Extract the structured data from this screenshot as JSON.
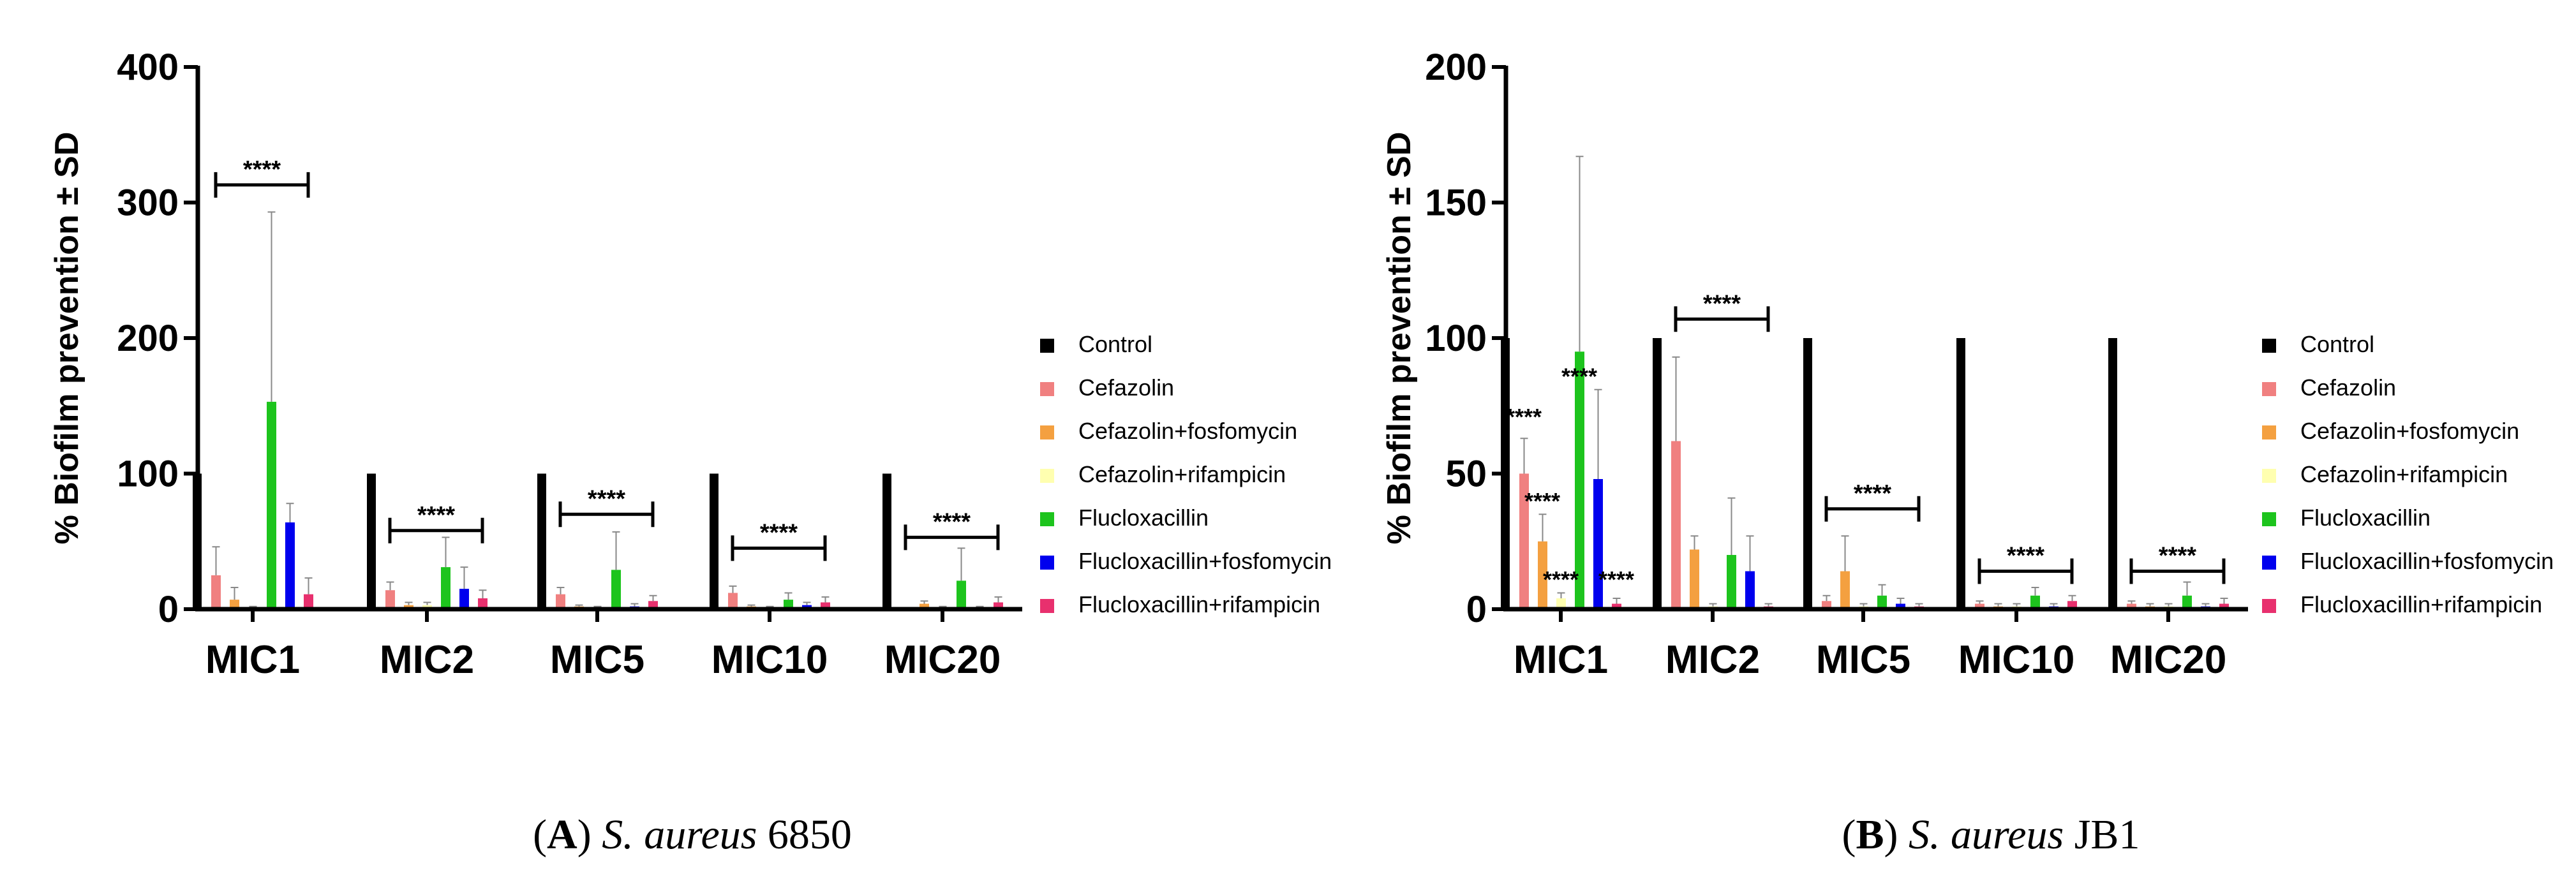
{
  "series_meta": [
    {
      "name": "Control",
      "color": "#000000"
    },
    {
      "name": "Cefazolin",
      "color": "#F08080"
    },
    {
      "name": "Cefazolin+fosfomycin",
      "color": "#F4A040"
    },
    {
      "name": "Cefazolin+rifampicin",
      "color": "#FFFFB0"
    },
    {
      "name": "Flucloxacillin",
      "color": "#1DC41D"
    },
    {
      "name": "Flucloxacillin+fosfomycin",
      "color": "#0000EE"
    },
    {
      "name": "Flucloxacillin+rifampicin",
      "color": "#E8306E"
    }
  ],
  "chart_data": [
    {
      "panel": "A",
      "type": "bar",
      "title": "",
      "ylabel": "% Biofilm prevention ± SD",
      "xlabel": "",
      "ylim": [
        0,
        400
      ],
      "yticks": [
        "0",
        "100",
        "200",
        "300",
        "400"
      ],
      "categories": [
        "MIC1",
        "MIC2",
        "MIC5",
        "MIC10",
        "MIC20"
      ],
      "legend": [
        "Control",
        "Cefazolin",
        "Cefazolin+fosfomycin",
        "Cefazolin+rifampicin",
        "Flucloxacillin",
        "Flucloxacillin+fosfomycin",
        "Flucloxacillin+rifampicin"
      ],
      "series": [
        {
          "name": "Control",
          "values": [
            100,
            100,
            100,
            100,
            100
          ],
          "errors": [
            0,
            0,
            0,
            0,
            0
          ]
        },
        {
          "name": "Cefazolin",
          "values": [
            25,
            14,
            11,
            12,
            0
          ],
          "errors": [
            21,
            6,
            5,
            5,
            0
          ]
        },
        {
          "name": "Cefazolin+fosfomycin",
          "values": [
            7,
            3,
            2,
            2,
            4
          ],
          "errors": [
            9,
            2,
            1,
            1,
            2
          ]
        },
        {
          "name": "Cefazolin+rifampicin",
          "values": [
            1,
            3,
            1,
            1,
            1
          ],
          "errors": [
            1,
            2,
            1,
            1,
            1
          ]
        },
        {
          "name": "Flucloxacillin",
          "values": [
            153,
            31,
            29,
            7,
            21
          ],
          "errors": [
            140,
            22,
            28,
            5,
            24
          ]
        },
        {
          "name": "Flucloxacillin+fosfomycin",
          "values": [
            64,
            15,
            2,
            3,
            1
          ],
          "errors": [
            14,
            16,
            2,
            2,
            1
          ]
        },
        {
          "name": "Flucloxacillin+rifampicin",
          "values": [
            11,
            8,
            6,
            5,
            5
          ],
          "errors": [
            12,
            6,
            4,
            4,
            4
          ]
        }
      ],
      "significance": [
        {
          "label": "****",
          "category": "MIC1",
          "y": 313
        },
        {
          "label": "****",
          "category": "MIC2",
          "y": 58
        },
        {
          "label": "****",
          "category": "MIC5",
          "y": 70
        },
        {
          "label": "****",
          "category": "MIC10",
          "y": 45
        },
        {
          "label": "****",
          "category": "MIC20",
          "y": 53
        }
      ],
      "caption": {
        "letter": "A",
        "species": "S. aureus",
        "strain": "6850"
      }
    },
    {
      "panel": "B",
      "type": "bar",
      "title": "",
      "ylabel": "% Biofilm prevention ± SD",
      "xlabel": "",
      "ylim": [
        0,
        200
      ],
      "yticks": [
        "0",
        "50",
        "100",
        "150",
        "200"
      ],
      "categories": [
        "MIC1",
        "MIC2",
        "MIC5",
        "MIC10",
        "MIC20"
      ],
      "legend": [
        "Control",
        "Cefazolin",
        "Cefazolin+fosfomycin",
        "Cefazolin+rifampicin",
        "Flucloxacillin",
        "Flucloxacillin+fosfomycin",
        "Flucloxacillin+rifampicin"
      ],
      "series": [
        {
          "name": "Control",
          "values": [
            100,
            100,
            100,
            100,
            100
          ],
          "errors": [
            0,
            0,
            0,
            0,
            0
          ]
        },
        {
          "name": "Cefazolin",
          "values": [
            50,
            62,
            3,
            2,
            2
          ],
          "errors": [
            13,
            31,
            2,
            1,
            1
          ]
        },
        {
          "name": "Cefazolin+fosfomycin",
          "values": [
            25,
            22,
            14,
            1,
            1
          ],
          "errors": [
            10,
            5,
            13,
            1,
            1
          ]
        },
        {
          "name": "Cefazolin+rifampicin",
          "values": [
            4,
            1,
            1,
            1,
            1
          ],
          "errors": [
            2,
            1,
            1,
            1,
            1
          ]
        },
        {
          "name": "Flucloxacillin",
          "values": [
            95,
            20,
            5,
            5,
            5
          ],
          "errors": [
            72,
            21,
            4,
            3,
            5
          ]
        },
        {
          "name": "Flucloxacillin+fosfomycin",
          "values": [
            48,
            14,
            2,
            1,
            1
          ],
          "errors": [
            33,
            13,
            2,
            1,
            1
          ]
        },
        {
          "name": "Flucloxacillin+rifampicin",
          "values": [
            2,
            1,
            1,
            3,
            2
          ],
          "errors": [
            2,
            1,
            1,
            2,
            2
          ]
        }
      ],
      "significance": [
        {
          "label": "****",
          "category": "MIC2",
          "y": 107
        },
        {
          "label": "****",
          "category": "MIC5",
          "y": 37
        },
        {
          "label": "****",
          "category": "MIC10",
          "y": 14
        },
        {
          "label": "****",
          "category": "MIC20",
          "y": 14
        }
      ],
      "bar_stars": [
        {
          "label": "****",
          "category": "MIC1",
          "series": "Cefazolin",
          "y": 68
        },
        {
          "label": "****",
          "category": "MIC1",
          "series": "Cefazolin+fosfomycin",
          "y": 37
        },
        {
          "label": "****",
          "category": "MIC1",
          "series": "Cefazolin+rifampicin",
          "y": 8
        },
        {
          "label": "****",
          "category": "MIC1",
          "series": "Flucloxacillin",
          "y": 83
        },
        {
          "label": "****",
          "category": "MIC1",
          "series": "Flucloxacillin+rifampicin",
          "y": 8
        }
      ],
      "caption": {
        "letter": "B",
        "species": "S. aureus",
        "strain": "JB1"
      }
    }
  ]
}
